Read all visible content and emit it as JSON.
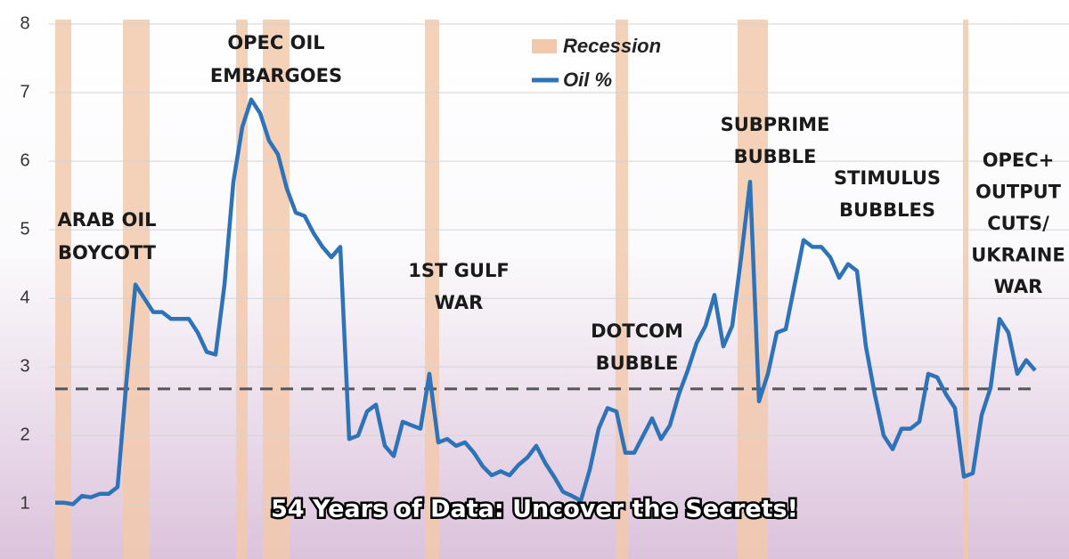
{
  "chart_data": {
    "type": "line",
    "caption": "54 Years of Data: Uncover the Secrets!",
    "ylim": [
      0.2,
      8
    ],
    "yticks": [
      1,
      2,
      3,
      4,
      5,
      6,
      7,
      8
    ],
    "xlim": [
      0,
      110
    ],
    "grid": true,
    "reference_line": 2.68,
    "series": [
      {
        "name": "Oil %",
        "color": "#2e72b8",
        "values": [
          1.02,
          1.02,
          1.0,
          1.12,
          1.1,
          1.15,
          1.15,
          1.25,
          2.8,
          4.2,
          4.0,
          3.8,
          3.8,
          3.7,
          3.7,
          3.7,
          3.5,
          3.22,
          3.18,
          4.2,
          5.7,
          6.5,
          6.9,
          6.7,
          6.3,
          6.1,
          5.6,
          5.25,
          5.2,
          4.95,
          4.75,
          4.6,
          4.75,
          1.95,
          2.0,
          2.35,
          2.45,
          1.85,
          1.7,
          2.2,
          2.15,
          2.1,
          2.9,
          1.9,
          1.95,
          1.85,
          1.9,
          1.75,
          1.55,
          1.42,
          1.48,
          1.42,
          1.57,
          1.68,
          1.85,
          1.6,
          1.4,
          1.18,
          1.12,
          1.05,
          1.5,
          2.1,
          2.4,
          2.35,
          1.75,
          1.75,
          2.0,
          2.25,
          1.95,
          2.15,
          2.6,
          2.95,
          3.35,
          3.6,
          4.05,
          3.3,
          3.6,
          4.6,
          5.7,
          2.5,
          2.9,
          3.5,
          3.55,
          4.2,
          4.85,
          4.75,
          4.75,
          4.6,
          4.3,
          4.5,
          4.4,
          3.3,
          2.6,
          2.0,
          1.8,
          2.1,
          2.1,
          2.2,
          2.9,
          2.85,
          2.6,
          2.4,
          1.4,
          1.45,
          2.3,
          2.7,
          3.7,
          3.5,
          2.9,
          3.1,
          2.95
        ]
      }
    ],
    "recession": {
      "name": "Recession",
      "color": "#f2c9ad",
      "spans": [
        [
          0,
          1.8
        ],
        [
          7.6,
          10.6
        ],
        [
          20.3,
          21.6
        ],
        [
          23.3,
          26.3
        ],
        [
          41.5,
          43.1
        ],
        [
          62.9,
          64.3
        ],
        [
          76.6,
          80
        ],
        [
          101.9,
          102.5
        ]
      ]
    },
    "annotations": [
      [
        "ARAB OIL",
        "BOYCOTT"
      ],
      [
        "OPEC OIL",
        "EMBARGOES"
      ],
      [
        "1ST GULF",
        "WAR"
      ],
      [
        "DOTCOM",
        "BUBBLE"
      ],
      [
        "SUBPRIME",
        "BUBBLE"
      ],
      [
        "STIMULUS",
        "BUBBLES"
      ],
      [
        "OPEC+",
        "OUTPUT",
        "CUTS/",
        "UKRAINE",
        "WAR"
      ]
    ]
  }
}
